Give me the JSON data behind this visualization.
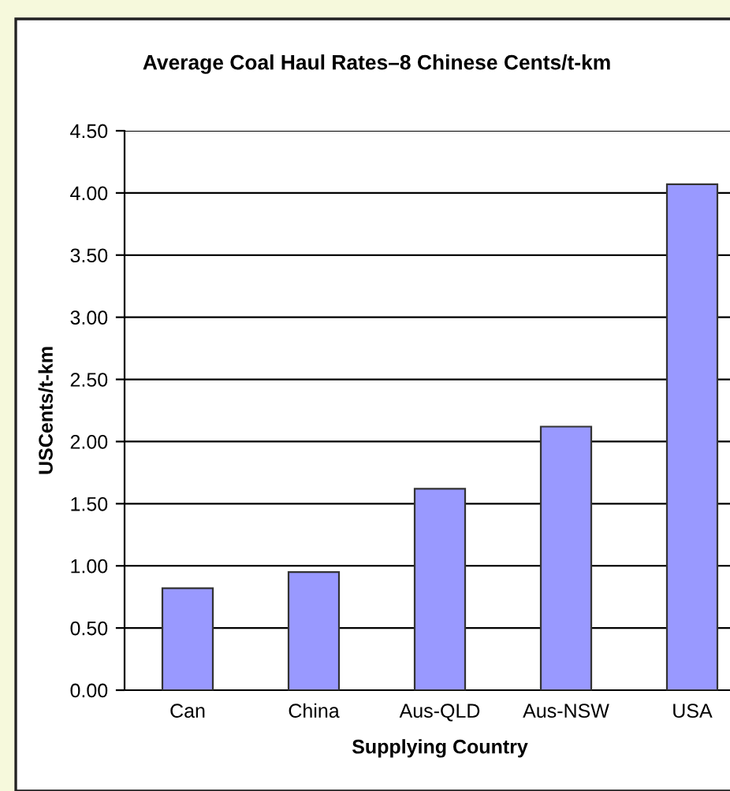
{
  "chart_data": {
    "type": "bar",
    "title": "Average Coal Haul Rates–8 Chinese Cents/t-km",
    "xlabel": "Supplying Country",
    "ylabel": "USCents/t-km",
    "categories": [
      "Can",
      "China",
      "Aus-QLD",
      "Aus-NSW",
      "USA"
    ],
    "values": [
      0.82,
      0.95,
      1.62,
      2.12,
      4.07
    ],
    "color": "#9999ff",
    "ylim": [
      0,
      4.5
    ],
    "yticks": [
      {
        "value": 0,
        "label": "0.00"
      },
      {
        "value": 0.5,
        "label": "0.50"
      },
      {
        "value": 1,
        "label": "1.00"
      },
      {
        "value": 1.5,
        "label": "1.50"
      },
      {
        "value": 2,
        "label": "2.00"
      },
      {
        "value": 2.5,
        "label": "2.50"
      },
      {
        "value": 3,
        "label": "3.00"
      },
      {
        "value": 3.5,
        "label": "3.50"
      },
      {
        "value": 4,
        "label": "4.00"
      },
      {
        "value": 4.5,
        "label": "4.50"
      }
    ],
    "grid": "y"
  }
}
